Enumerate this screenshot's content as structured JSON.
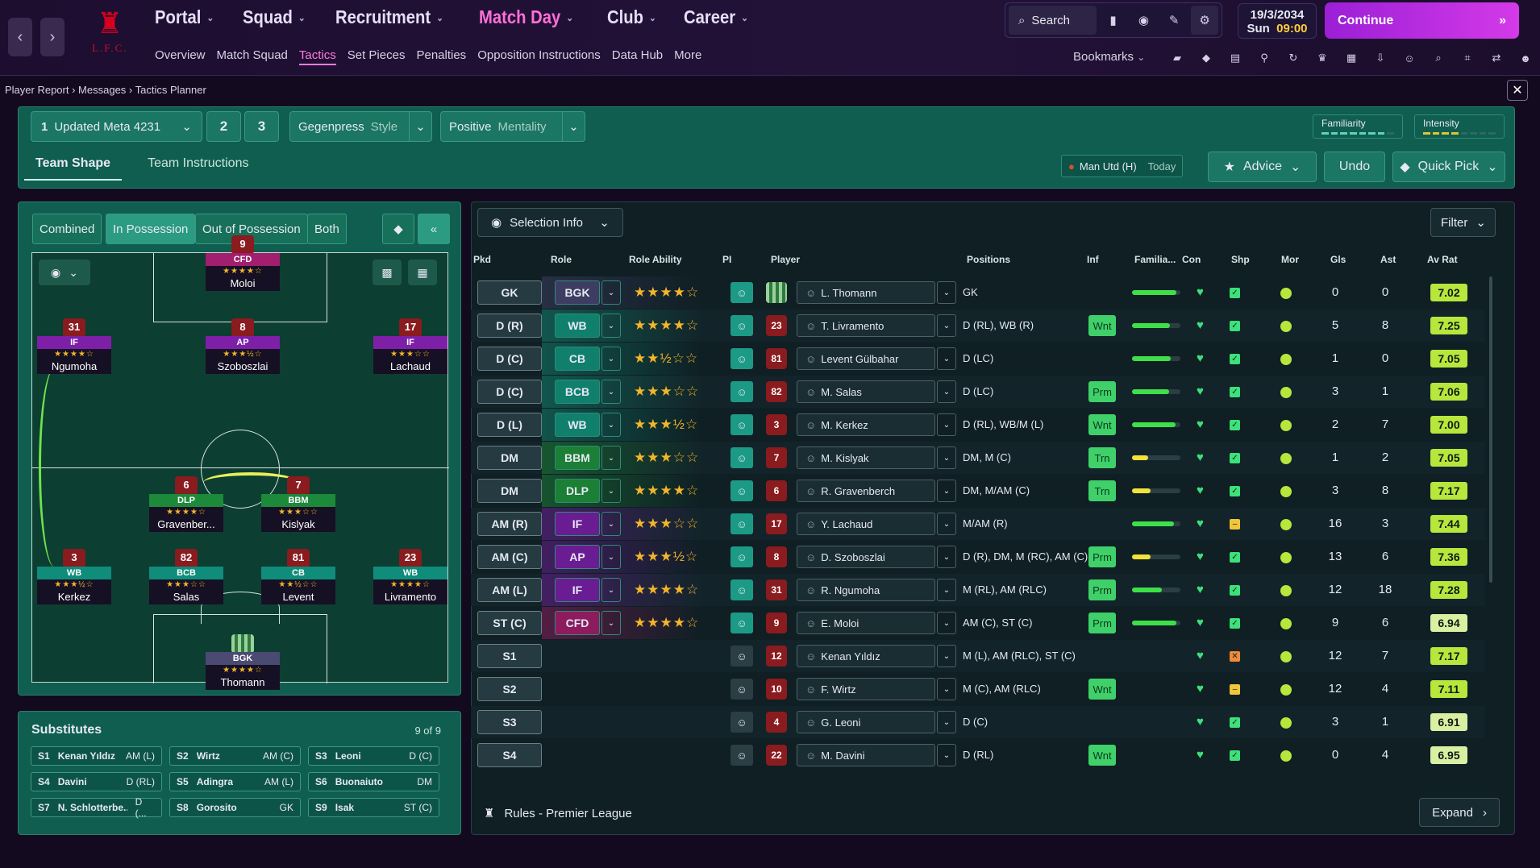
{
  "header": {
    "club_short": "L.F.C.",
    "nav": [
      {
        "label": "Portal"
      },
      {
        "label": "Squad"
      },
      {
        "label": "Recruitment"
      },
      {
        "label": "Match Day",
        "active": true
      },
      {
        "label": "Club"
      },
      {
        "label": "Career"
      }
    ],
    "subnav": [
      {
        "label": "Overview"
      },
      {
        "label": "Match Squad"
      },
      {
        "label": "Tactics",
        "active": true
      },
      {
        "label": "Set Pieces"
      },
      {
        "label": "Penalties"
      },
      {
        "label": "Opposition Instructions"
      },
      {
        "label": "Data Hub"
      },
      {
        "label": "More"
      }
    ],
    "search_label": "Search",
    "date": "19/3/2034",
    "day": "Sun",
    "time": "09:00",
    "continue_label": "Continue",
    "bookmarks_label": "Bookmarks"
  },
  "breadcrumbs": [
    "Player Report",
    "Messages",
    "Tactics Planner"
  ],
  "tactic": {
    "slot": "1",
    "name": "Updated Meta 4231",
    "slot2": "2",
    "slot3": "3",
    "style_value": "Gegenpress",
    "style_label": "Style",
    "mentality_value": "Positive",
    "mentality_label": "Mentality",
    "familiarity_label": "Familiarity",
    "intensity_label": "Intensity"
  },
  "tabs": {
    "team_shape": "Team Shape",
    "team_instructions": "Team Instructions"
  },
  "opponent": {
    "name": "Man Utd (H)",
    "when": "Today"
  },
  "actions": {
    "advice": "Advice",
    "undo": "Undo",
    "quick_pick": "Quick Pick"
  },
  "view_tabs": [
    "Combined",
    "In Possession",
    "Out of Possession",
    "Both"
  ],
  "pitch_players": [
    {
      "num": "9",
      "role": "CFD",
      "name": "Moloi",
      "stars": "★★★★☆",
      "color": "#a21e6e"
    },
    {
      "num": "8",
      "role": "AP",
      "name": "Szoboszlai",
      "stars": "★★★½☆",
      "color": "#7e1fa8"
    },
    {
      "num": "31",
      "role": "IF",
      "name": "Ngumoha",
      "stars": "★★★★☆",
      "color": "#7e1fa8"
    },
    {
      "num": "17",
      "role": "IF",
      "name": "Lachaud",
      "stars": "★★★☆☆",
      "color": "#7e1fa8"
    },
    {
      "num": "6",
      "role": "DLP",
      "name": "Gravenber...",
      "stars": "★★★★☆",
      "color": "#1c8a3a"
    },
    {
      "num": "7",
      "role": "BBM",
      "name": "Kislyak",
      "stars": "★★★☆☆",
      "color": "#1c8a3a"
    },
    {
      "num": "3",
      "role": "WB",
      "name": "Kerkez",
      "stars": "★★★½☆",
      "color": "#0f8d7a"
    },
    {
      "num": "82",
      "role": "BCB",
      "name": "Salas",
      "stars": "★★★☆☆",
      "color": "#0f8d7a"
    },
    {
      "num": "81",
      "role": "CB",
      "name": "Levent",
      "stars": "★★½☆☆",
      "color": "#0f8d7a"
    },
    {
      "num": "23",
      "role": "WB",
      "name": "Livramento",
      "stars": "★★★★☆",
      "color": "#0f8d7a"
    },
    {
      "num": "",
      "role": "BGK",
      "name": "Thomann",
      "stars": "★★★★☆",
      "color": "#4a4a72"
    }
  ],
  "substitutes": {
    "title": "Substitutes",
    "count": "9 of 9",
    "items": [
      {
        "slot": "S1",
        "name": "Kenan Yıldız",
        "pos": "AM (L)"
      },
      {
        "slot": "S2",
        "name": "Wirtz",
        "pos": "AM (C)"
      },
      {
        "slot": "S3",
        "name": "Leoni",
        "pos": "D (C)"
      },
      {
        "slot": "S4",
        "name": "Davini",
        "pos": "D (RL)"
      },
      {
        "slot": "S5",
        "name": "Adingra",
        "pos": "AM (L)"
      },
      {
        "slot": "S6",
        "name": "Buonaiuto",
        "pos": "DM"
      },
      {
        "slot": "S7",
        "name": "N. Schlotterbe...",
        "pos": "D (..."
      },
      {
        "slot": "S8",
        "name": "Gorosito",
        "pos": "GK"
      },
      {
        "slot": "S9",
        "name": "Isak",
        "pos": "ST (C)"
      }
    ]
  },
  "table": {
    "selection_info": "Selection Info",
    "filter": "Filter",
    "columns": [
      "Pkd",
      "Role",
      "Role Ability",
      "PI",
      "Player",
      "Positions",
      "Inf",
      "Familia...",
      "Con",
      "Shp",
      "Mor",
      "Gls",
      "Ast",
      "Av Rat"
    ],
    "rows": [
      {
        "pkd": "GK",
        "role": "BGK",
        "stars": "★★★★☆",
        "kit": "",
        "player": "L. Thomann",
        "positions": "GK",
        "inf": "",
        "fam": 0.92,
        "famc": "#3ee04a",
        "shp": "tick",
        "gls": "0",
        "ast": "0",
        "av": "7.02",
        "avc": "#b7e63d",
        "tint": "#3d3d62"
      },
      {
        "pkd": "D (R)",
        "role": "WB",
        "stars": "★★★★☆",
        "kit": "23",
        "player": "T. Livramento",
        "positions": "D (RL), WB (R)",
        "inf": "Wnt",
        "fam": 0.78,
        "famc": "#3ee04a",
        "shp": "tick",
        "gls": "5",
        "ast": "8",
        "av": "7.25",
        "avc": "#b7e63d",
        "tint": "#10806d"
      },
      {
        "pkd": "D (C)",
        "role": "CB",
        "stars": "★★½☆☆",
        "kit": "81",
        "player": "Levent Gülbahar",
        "positions": "D (LC)",
        "inf": "",
        "fam": 0.8,
        "famc": "#3ee04a",
        "shp": "tick",
        "gls": "1",
        "ast": "0",
        "av": "7.05",
        "avc": "#b7e63d",
        "tint": "#10806d"
      },
      {
        "pkd": "D (C)",
        "role": "BCB",
        "stars": "★★★☆☆",
        "kit": "82",
        "player": "M. Salas",
        "positions": "D (LC)",
        "inf": "Prm",
        "fam": 0.76,
        "famc": "#3ee04a",
        "shp": "tick",
        "gls": "3",
        "ast": "1",
        "av": "7.06",
        "avc": "#b7e63d",
        "tint": "#10806d"
      },
      {
        "pkd": "D (L)",
        "role": "WB",
        "stars": "★★★½☆",
        "kit": "3",
        "player": "M. Kerkez",
        "positions": "D (RL), WB/M (L)",
        "inf": "Wnt",
        "fam": 0.9,
        "famc": "#3ee04a",
        "shp": "tick",
        "gls": "2",
        "ast": "7",
        "av": "7.00",
        "avc": "#b7e63d",
        "tint": "#10806d"
      },
      {
        "pkd": "DM",
        "role": "BBM",
        "stars": "★★★☆☆",
        "kit": "7",
        "player": "M. Kislyak",
        "positions": "DM, M (C)",
        "inf": "Trn",
        "fam": 0.34,
        "famc": "#f2e33a",
        "shp": "tick",
        "gls": "1",
        "ast": "2",
        "av": "7.05",
        "avc": "#b7e63d",
        "tint": "#1b7f36"
      },
      {
        "pkd": "DM",
        "role": "DLP",
        "stars": "★★★★☆",
        "kit": "6",
        "player": "R. Gravenberch",
        "positions": "DM, M/AM (C)",
        "inf": "Trn",
        "fam": 0.38,
        "famc": "#f2e33a",
        "shp": "tick",
        "gls": "3",
        "ast": "8",
        "av": "7.17",
        "avc": "#b7e63d",
        "tint": "#1b7f36"
      },
      {
        "pkd": "AM (R)",
        "role": "IF",
        "stars": "★★★☆☆",
        "kit": "17",
        "player": "Y. Lachaud",
        "positions": "M/AM (R)",
        "inf": "",
        "fam": 0.86,
        "famc": "#3ee04a",
        "shp": "dash",
        "gls": "16",
        "ast": "3",
        "av": "7.44",
        "avc": "#b7e63d",
        "tint": "#6a1d92"
      },
      {
        "pkd": "AM (C)",
        "role": "AP",
        "stars": "★★★½☆",
        "kit": "8",
        "player": "D. Szoboszlai",
        "positions": "D (R), DM, M (RC), AM (C)",
        "inf": "Prm",
        "fam": 0.38,
        "famc": "#f2e33a",
        "shp": "tick",
        "gls": "13",
        "ast": "6",
        "av": "7.36",
        "avc": "#b7e63d",
        "tint": "#6a1d92"
      },
      {
        "pkd": "AM (L)",
        "role": "IF",
        "stars": "★★★★☆",
        "kit": "31",
        "player": "R. Ngumoha",
        "positions": "M (RL), AM (RLC)",
        "inf": "Prm",
        "fam": 0.62,
        "famc": "#3ee04a",
        "shp": "tick",
        "gls": "12",
        "ast": "18",
        "av": "7.28",
        "avc": "#b7e63d",
        "tint": "#6a1d92"
      },
      {
        "pkd": "ST (C)",
        "role": "CFD",
        "stars": "★★★★☆",
        "kit": "9",
        "player": "E. Moloi",
        "positions": "AM (C), ST (C)",
        "inf": "Prm",
        "fam": 0.92,
        "famc": "#3ee04a",
        "shp": "tick",
        "gls": "9",
        "ast": "6",
        "av": "6.94",
        "avc": "#d9f0a2",
        "tint": "#8c1c5e"
      },
      {
        "pkd": "S1",
        "role": "",
        "stars": "",
        "kit": "12",
        "player": "Kenan Yıldız",
        "positions": "M (L), AM (RLC), ST (C)",
        "inf": "",
        "fam": 0,
        "famc": "",
        "shp": "cross",
        "gls": "12",
        "ast": "7",
        "av": "7.17",
        "avc": "#b7e63d",
        "tint": ""
      },
      {
        "pkd": "S2",
        "role": "",
        "stars": "",
        "kit": "10",
        "player": "F. Wirtz",
        "positions": "M (C), AM (RLC)",
        "inf": "Wnt",
        "fam": 0,
        "famc": "",
        "shp": "dash",
        "gls": "12",
        "ast": "4",
        "av": "7.11",
        "avc": "#b7e63d",
        "tint": ""
      },
      {
        "pkd": "S3",
        "role": "",
        "stars": "",
        "kit": "4",
        "player": "G. Leoni",
        "positions": "D (C)",
        "inf": "",
        "fam": 0,
        "famc": "",
        "shp": "tick",
        "gls": "3",
        "ast": "1",
        "av": "6.91",
        "avc": "#d9f0a2",
        "tint": ""
      },
      {
        "pkd": "S4",
        "role": "",
        "stars": "",
        "kit": "22",
        "player": "M. Davini",
        "positions": "D (RL)",
        "inf": "Wnt",
        "fam": 0,
        "famc": "",
        "shp": "tick",
        "gls": "0",
        "ast": "4",
        "av": "6.95",
        "avc": "#d9f0a2",
        "tint": ""
      }
    ]
  },
  "footer": {
    "rules": "Rules - Premier League",
    "expand": "Expand"
  }
}
